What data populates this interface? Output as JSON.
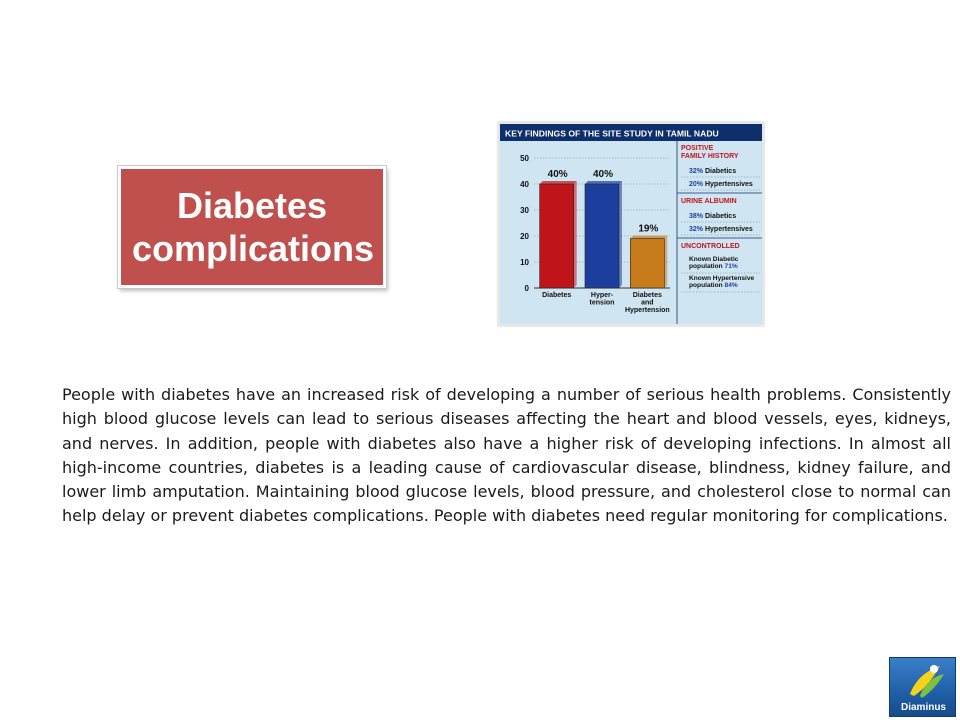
{
  "slide": {
    "title": "Diabetes complications",
    "body": "People with diabetes have an increased risk of developing a number of serious health problems. Consistently high blood glucose levels can lead to serious diseases affecting the heart and blood vessels, eyes, kidneys, and nerves. In addition, people with diabetes also have a higher risk of developing infections. In almost all high-income countries, diabetes is a leading cause of cardiovascular disease, blindness, kidney failure, and lower limb amputation. Maintaining blood glucose levels, blood pressure, and cholesterol close to normal can help delay or prevent diabetes complications. People with diabetes need regular monitoring for complications."
  },
  "logo": {
    "text": "Diaminus",
    "icon": "leaf-figure-icon"
  },
  "chart_data": {
    "type": "bar",
    "title": "KEY FINDINGS OF THE SITE STUDY IN TAMIL NADU",
    "categories": [
      "Diabetes",
      "Hyper-tension",
      "Diabetes and Hypertension"
    ],
    "values": [
      40,
      40,
      19
    ],
    "value_labels": [
      "40%",
      "40%",
      "19%"
    ],
    "colors": [
      "#c0141b",
      "#1c3f9e",
      "#c87b1a"
    ],
    "ylim": [
      0,
      50
    ],
    "yticks": [
      0,
      10,
      20,
      30,
      40,
      50
    ],
    "grid": true,
    "background": "#cfe6f2",
    "side_panel": [
      {
        "heading": "POSITIVE FAMILY HISTORY",
        "rows": [
          {
            "pct": "32%",
            "label": "Diabetics"
          },
          {
            "pct": "20%",
            "label": "Hypertensives"
          }
        ]
      },
      {
        "heading": "URINE ALBUMIN",
        "rows": [
          {
            "pct": "38%",
            "label": "Diabetics"
          },
          {
            "pct": "32%",
            "label": "Hypertensives"
          }
        ]
      },
      {
        "heading": "UNCONTROLLED",
        "rows": [
          {
            "label": "Known Diabetic population",
            "pct": "71%"
          },
          {
            "label": "Known Hypertensive population",
            "pct": "84%"
          }
        ]
      }
    ]
  }
}
